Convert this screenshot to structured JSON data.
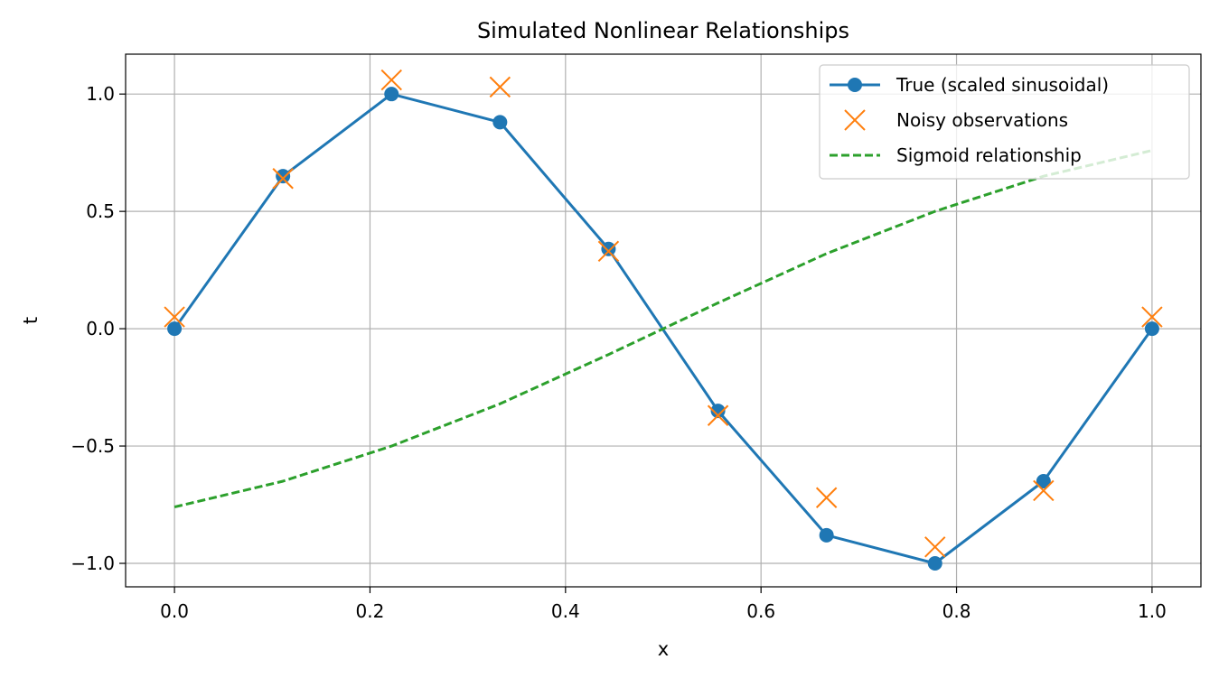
{
  "chart_data": {
    "type": "line",
    "title": "Simulated Nonlinear Relationships",
    "xlabel": "x",
    "ylabel": "t",
    "xlim": [
      -0.05,
      1.05
    ],
    "ylim": [
      -1.1,
      1.17
    ],
    "grid": true,
    "legend_position": "top-right",
    "x_ticks": [
      0.0,
      0.2,
      0.4,
      0.6,
      0.8,
      1.0
    ],
    "x_tick_labels": [
      "0.0",
      "0.2",
      "0.4",
      "0.6",
      "0.8",
      "1.0"
    ],
    "y_ticks": [
      1.0,
      0.5,
      0.0,
      -0.5,
      -1.0
    ],
    "y_tick_labels": [
      "1.0",
      "0.5",
      "0.0",
      "−0.5",
      "−1.0"
    ],
    "series": [
      {
        "name": "True (scaled sinusoidal)",
        "style": "line-marker",
        "color": "#1f77b4",
        "x": [
          0.0,
          0.111,
          0.222,
          0.333,
          0.444,
          0.556,
          0.667,
          0.778,
          0.889,
          1.0
        ],
        "y": [
          0.0,
          0.65,
          1.0,
          0.88,
          0.34,
          -0.35,
          -0.88,
          -1.0,
          -0.65,
          0.0
        ]
      },
      {
        "name": "Noisy observations",
        "style": "x-marker",
        "color": "#ff7f0e",
        "x": [
          0.0,
          0.111,
          0.222,
          0.333,
          0.444,
          0.556,
          0.667,
          0.778,
          0.889,
          1.0
        ],
        "y": [
          0.05,
          0.64,
          1.06,
          1.03,
          0.33,
          -0.37,
          -0.72,
          -0.93,
          -0.69,
          0.05
        ]
      },
      {
        "name": "Sigmoid relationship",
        "style": "dashed-line",
        "color": "#2ca02c",
        "x": [
          0.0,
          0.111,
          0.222,
          0.333,
          0.444,
          0.556,
          0.667,
          0.778,
          0.889,
          1.0
        ],
        "y": [
          -0.76,
          -0.65,
          -0.5,
          -0.32,
          -0.11,
          0.11,
          0.32,
          0.5,
          0.65,
          0.76
        ]
      }
    ]
  }
}
